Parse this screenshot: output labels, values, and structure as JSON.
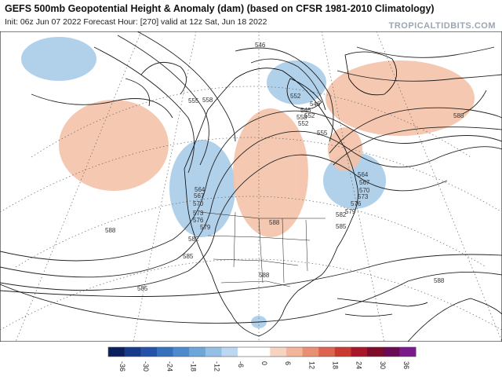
{
  "header": {
    "title": "GEFS 500mb Geopotential Height & Anomaly (dam) (based on CFSR 1981-2010 Climatology)",
    "subtitle": "Init: 06z Jun 07 2022   Forecast Hour: [270]   valid at 12z Sat, Jun 18 2022",
    "brand": "TROPICALTIDBITS.COM"
  },
  "contour_labels": [
    "555",
    "558",
    "546",
    "552",
    "546",
    "552",
    "555",
    "558",
    "552",
    "546",
    "564",
    "567",
    "570",
    "573",
    "576",
    "579",
    "582",
    "564",
    "567",
    "570",
    "573",
    "576",
    "579",
    "582",
    "585",
    "588",
    "588",
    "588",
    "588",
    "585",
    "588",
    "585"
  ],
  "colorbar": {
    "ticks": [
      "-36",
      "-30",
      "-24",
      "-18",
      "-12",
      "-6",
      "0",
      "6",
      "12",
      "18",
      "24",
      "30",
      "36"
    ],
    "colors": [
      "#0b1f5c",
      "#163a8a",
      "#2352a8",
      "#3570bd",
      "#4f8bcc",
      "#6fa6d9",
      "#94c0e6",
      "#bcd7ef",
      "#ffffff",
      "#ffffff",
      "#f7d3c2",
      "#f2b59c",
      "#e98f72",
      "#dd654f",
      "#c93b32",
      "#a8162a",
      "#7e0b2a",
      "#6a0a55",
      "#7a1a8c"
    ]
  },
  "map_colors": {
    "ocean": "#ffffff",
    "land_line": "#000000",
    "positive_anomaly": "#f4c2a8",
    "negative_anomaly": "#a9cbe8"
  }
}
